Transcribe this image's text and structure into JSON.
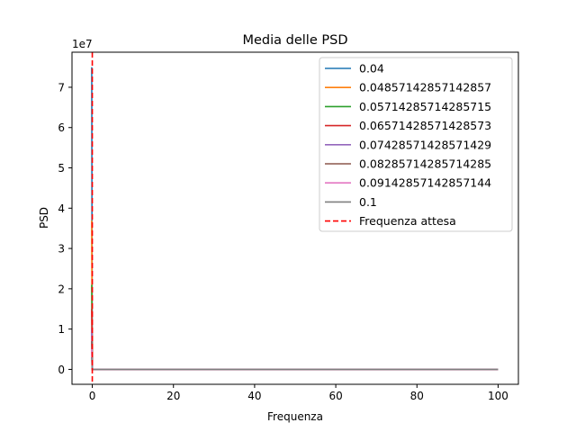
{
  "chart_data": {
    "type": "line",
    "title": "Media delle PSD",
    "xlabel": "Frequenza",
    "ylabel": "PSD",
    "y_offset_label": "1e7",
    "xlim": [
      -5,
      105
    ],
    "ylim": [
      -0.37,
      7.87
    ],
    "y_scale_note": "values in units of 1e7",
    "xticks": [
      0,
      20,
      40,
      60,
      80,
      100
    ],
    "xtick_labels": [
      "0",
      "20",
      "40",
      "60",
      "80",
      "100"
    ],
    "yticks": [
      0,
      1,
      2,
      3,
      4,
      5,
      6,
      7
    ],
    "ytick_labels": [
      "0",
      "1",
      "2",
      "3",
      "4",
      "5",
      "6",
      "7"
    ],
    "grid": false,
    "legend_position": "top-right",
    "series": [
      {
        "name": "0.04",
        "color": "#1f77b4",
        "peak": 7.5,
        "x_peak": 0,
        "tail_x": [
          0,
          100
        ],
        "tail_y": [
          0,
          0
        ]
      },
      {
        "name": "0.04857142857142857",
        "color": "#ff7f0e",
        "peak": 3.7,
        "x_peak": 0,
        "tail_x": [
          0,
          100
        ],
        "tail_y": [
          0,
          0
        ]
      },
      {
        "name": "0.05714285714285715",
        "color": "#2ca02c",
        "peak": 2.1,
        "x_peak": 0,
        "tail_x": [
          0,
          100
        ],
        "tail_y": [
          0,
          0
        ]
      },
      {
        "name": "0.06571428571428573",
        "color": "#d62728",
        "peak": 1.5,
        "x_peak": 0,
        "tail_x": [
          0,
          100
        ],
        "tail_y": [
          0,
          0
        ]
      },
      {
        "name": "0.07428571428571429",
        "color": "#9467bd",
        "peak": 1.0,
        "x_peak": 0,
        "tail_x": [
          0,
          100
        ],
        "tail_y": [
          0,
          0
        ]
      },
      {
        "name": "0.08285714285714285",
        "color": "#8c564b",
        "peak": 0.7,
        "x_peak": 0,
        "tail_x": [
          0,
          100
        ],
        "tail_y": [
          0,
          0
        ]
      },
      {
        "name": "0.09142857142857144",
        "color": "#e377c2",
        "peak": 0.5,
        "x_peak": 0,
        "tail_x": [
          0,
          100
        ],
        "tail_y": [
          0,
          0
        ]
      },
      {
        "name": "0.1",
        "color": "#7f7f7f",
        "peak": 0.3,
        "x_peak": 0,
        "tail_x": [
          0,
          100
        ],
        "tail_y": [
          0,
          0
        ]
      }
    ],
    "reference_line": {
      "name": "Frequenza attesa",
      "x": 0,
      "color": "#ff0000",
      "style": "dashed"
    }
  }
}
